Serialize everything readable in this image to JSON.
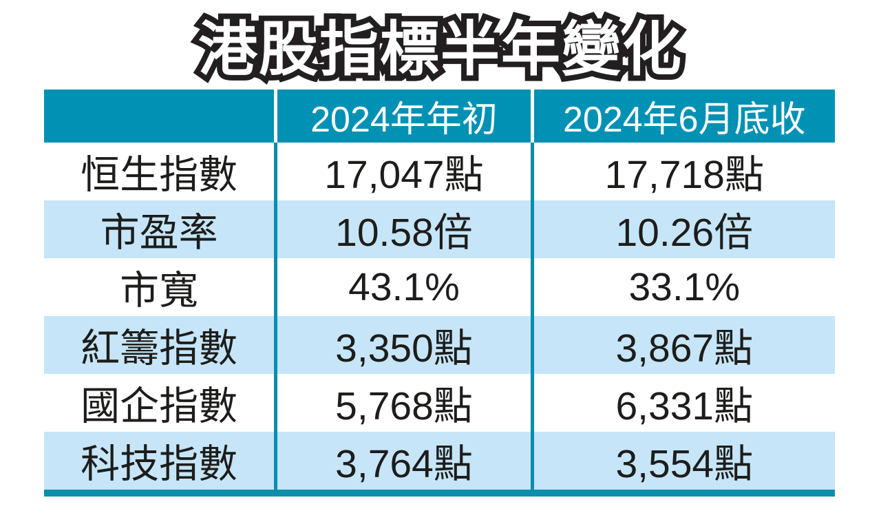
{
  "page": {
    "title": "港股指標半年變化"
  },
  "colors": {
    "header_bg": "#0091b5",
    "header_text": "#ffffff",
    "row_bg": "#ffffff",
    "row_alt_bg": "#c6e5f9",
    "divider": "#0b8dad",
    "body_text": "#1d1d1b",
    "title_fill": "#ffffff",
    "title_outline": "#231f20"
  },
  "table": {
    "columns": [
      "",
      "2024年年初",
      "2024年6月底收"
    ],
    "rows": [
      {
        "label": "恒生指數",
        "start": "17,047點",
        "end": "17,718點"
      },
      {
        "label": "市盈率",
        "start": "10.58倍",
        "end": "10.26倍"
      },
      {
        "label": "市寬",
        "start": "43.1%",
        "end": "33.1%"
      },
      {
        "label": "紅籌指數",
        "start": "3,350點",
        "end": "3,867點"
      },
      {
        "label": "國企指數",
        "start": "5,768點",
        "end": "6,331點"
      },
      {
        "label": "科技指數",
        "start": "3,764點",
        "end": "3,554點"
      }
    ]
  },
  "chart_data": {
    "type": "table",
    "title": "港股指標半年變化",
    "columns": [
      "",
      "2024年年初",
      "2024年6月底收"
    ],
    "rows": [
      [
        "恒生指數",
        "17,047點",
        "17,718點"
      ],
      [
        "市盈率",
        "10.58倍",
        "10.26倍"
      ],
      [
        "市寬",
        "43.1%",
        "33.1%"
      ],
      [
        "紅籌指數",
        "3,350點",
        "3,867點"
      ],
      [
        "國企指數",
        "5,768點",
        "6,331點"
      ],
      [
        "科技指數",
        "3,764點",
        "3,554點"
      ]
    ]
  }
}
